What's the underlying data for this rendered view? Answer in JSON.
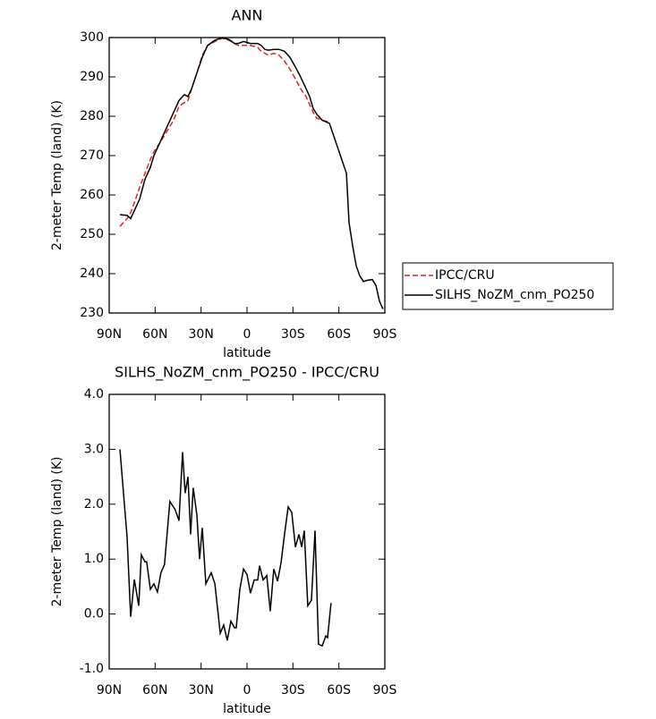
{
  "chart_data": [
    {
      "type": "line",
      "title": "ANN",
      "xlabel": "latitude",
      "ylabel": "2-meter Temp (land) (K)",
      "x": [
        83.0,
        78.3,
        76.0,
        73.6,
        70.1,
        66.6,
        63.1,
        60.8,
        57.3,
        52.6,
        47.9,
        44.4,
        40.9,
        38.6,
        36.2,
        32.7,
        29.2,
        25.7,
        21.0,
        16.3,
        11.7,
        8.2,
        5.8,
        2.3,
        -2.3,
        -7.0,
        -9.3,
        -11.7,
        -14.0,
        -17.5,
        -21.0,
        -24.5,
        -28.0,
        -31.6,
        -35.0,
        -38.6,
        -40.9,
        -43.2,
        -45.6,
        -49.1,
        -53.8,
        -64.9,
        -66.6,
        -69.0,
        -71.3,
        -73.6,
        -76.0,
        -78.3,
        -81.8,
        -84.2,
        -86.5,
        -88.8
      ],
      "series": [
        {
          "name": "IPCC/CRU",
          "color": "#e8201e",
          "dashed": true,
          "values": [
            252,
            254,
            255.5,
            258,
            262,
            265.5,
            269,
            271,
            273,
            276,
            279,
            282.5,
            283.5,
            284,
            287,
            291,
            295.5,
            298,
            299,
            299.8,
            299.3,
            298.5,
            298,
            298,
            298,
            297.5,
            296.5,
            296,
            295.5,
            296,
            295.5,
            294,
            292,
            289.5,
            287,
            285,
            283,
            281,
            279.5,
            279,
            278.5,
            null,
            null,
            null,
            null,
            null,
            null,
            null,
            null,
            null,
            null,
            null
          ]
        },
        {
          "name": "SILHS_NoZM_cnm_PO250",
          "color": "#000000",
          "dashed": false,
          "values": [
            255,
            254.8,
            254,
            256,
            259,
            264,
            267,
            270,
            273,
            277,
            281,
            284,
            285.5,
            285,
            287,
            291,
            295,
            298,
            299.3,
            300,
            299.5,
            298.5,
            298.5,
            299,
            298.5,
            298.5,
            298,
            297,
            296.8,
            297,
            297,
            296.5,
            295,
            292.5,
            290,
            287,
            285,
            282,
            280.5,
            279,
            278.2,
            265.5,
            253,
            247,
            242,
            239.5,
            238,
            238.3,
            238.5,
            237,
            233,
            231
          ]
        }
      ],
      "xlim": [
        90,
        -90
      ],
      "xticks": [
        {
          "value": 90,
          "label": "90N"
        },
        {
          "value": 60,
          "label": "60N"
        },
        {
          "value": 30,
          "label": "30N"
        },
        0,
        {
          "value": -30,
          "label": "30S"
        },
        {
          "value": -60,
          "label": "60S"
        },
        {
          "value": -90,
          "label": "90S"
        }
      ],
      "ylim": [
        230,
        300
      ],
      "yticks": [
        230,
        240,
        250,
        260,
        270,
        280,
        290,
        300
      ],
      "legend": "right"
    },
    {
      "type": "line",
      "title": "SILHS_NoZM_cnm_PO250 - IPCC/CRU",
      "xlabel": "latitude",
      "ylabel": "2-meter Temp (land) (K)",
      "x": [
        83.0,
        78.3,
        76.0,
        73.6,
        70.7,
        69.0,
        66.6,
        65.5,
        63.1,
        60.8,
        58.5,
        56.2,
        53.9,
        50.4,
        46.9,
        44.4,
        42.1,
        40.4,
        38.6,
        36.8,
        35.1,
        32.7,
        31.0,
        29.2,
        26.9,
        23.4,
        21.0,
        17.5,
        15.2,
        12.9,
        10.5,
        8.2,
        7.0,
        4.7,
        2.3,
        0.0,
        -2.3,
        -4.7,
        -7.0,
        -8.2,
        -10.5,
        -12.9,
        -15.2,
        -17.5,
        -19.9,
        -22.2,
        -24.5,
        -26.9,
        -29.2,
        -31.6,
        -33.9,
        -35.7,
        -37.4,
        -39.7,
        -42.1,
        -44.4,
        -46.7,
        -49.1,
        -51.4,
        -52.6,
        -54.9
      ],
      "series": [
        {
          "name": "SILHS_NoZM_cnm_PO250 - IPCC/CRU",
          "color": "#000000",
          "dashed": false,
          "values": [
            3.0,
            1.4,
            -0.05,
            0.63,
            0.15,
            1.08,
            0.95,
            0.95,
            0.45,
            0.55,
            0.4,
            0.75,
            0.9,
            2.05,
            1.9,
            1.7,
            2.95,
            2.2,
            2.5,
            1.45,
            2.3,
            1.8,
            1.0,
            1.57,
            0.55,
            0.75,
            0.55,
            -0.35,
            -0.2,
            -0.48,
            -0.13,
            -0.25,
            -0.25,
            0.45,
            0.82,
            0.72,
            0.38,
            0.62,
            0.62,
            0.88,
            0.62,
            0.7,
            0.05,
            0.82,
            0.6,
            0.93,
            1.45,
            1.95,
            1.85,
            1.22,
            1.45,
            1.22,
            1.52,
            0.15,
            0.25,
            1.52,
            -0.55,
            -0.58,
            -0.4,
            -0.43,
            0.2
          ]
        }
      ],
      "xlim": [
        90,
        -90
      ],
      "xticks": [
        {
          "value": 90,
          "label": "90N"
        },
        {
          "value": 60,
          "label": "60N"
        },
        {
          "value": 30,
          "label": "30N"
        },
        0,
        {
          "value": -30,
          "label": "30S"
        },
        {
          "value": -60,
          "label": "60S"
        },
        {
          "value": -90,
          "label": "90S"
        }
      ],
      "ylim": [
        -1,
        4
      ],
      "yticks": [
        {
          "value": -1,
          "label": "-1.0"
        },
        {
          "value": 0,
          "label": "0.0"
        },
        {
          "value": 1,
          "label": "1.0"
        },
        {
          "value": 2,
          "label": "2.0"
        },
        {
          "value": 3,
          "label": "3.0"
        },
        {
          "value": 4,
          "label": "4.0"
        }
      ]
    }
  ]
}
